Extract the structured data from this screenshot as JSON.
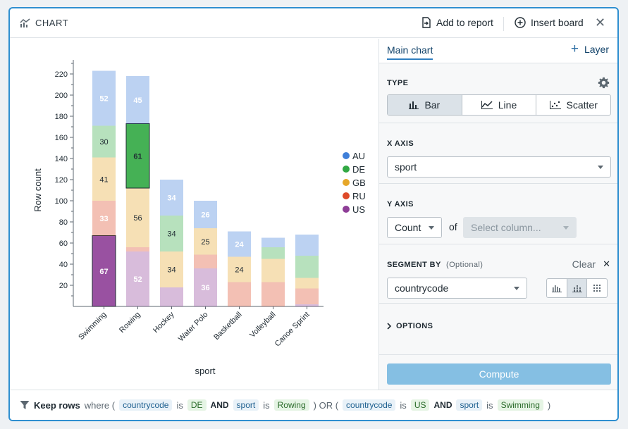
{
  "header": {
    "title": "CHART",
    "add_to_report": "Add to report",
    "insert_board": "Insert board"
  },
  "panel": {
    "tab_main": "Main chart",
    "tab_layer": "Layer",
    "type_label": "TYPE",
    "type_options": [
      "Bar",
      "Line",
      "Scatter"
    ],
    "type_selected": "Bar",
    "x_axis_label": "X AXIS",
    "x_axis_value": "sport",
    "y_axis_label": "Y AXIS",
    "y_agg": "Count",
    "y_of": "of",
    "y_column_placeholder": "Select column...",
    "segment_label": "SEGMENT BY",
    "segment_optional": "(Optional)",
    "segment_clear": "Clear",
    "segment_value": "countrycode",
    "options_label": "OPTIONS",
    "compute_label": "Compute"
  },
  "footer": {
    "keep_rows": "Keep rows",
    "where": "where (",
    "col1": "countrycode",
    "is1": "is",
    "val1": "DE",
    "and1": "AND",
    "col2": "sport",
    "is2": "is",
    "val2": "Rowing",
    "or": ") OR (",
    "col3": "countrycode",
    "is3": "is",
    "val3": "US",
    "and2": "AND",
    "col4": "sport",
    "is4": "is",
    "val4": "Swimming",
    "close": ")"
  },
  "colors": {
    "AU": "#3f7fd9",
    "DE": "#31a843",
    "GB": "#e6a72a",
    "RU": "#de4a29",
    "US": "#8e3e97",
    "accent": "#2f8fd0"
  },
  "chart_data": {
    "type": "bar",
    "stacked": true,
    "xlabel": "sport",
    "ylabel": "Row count",
    "ylim": [
      0,
      240
    ],
    "yticks": [
      20,
      40,
      60,
      80,
      100,
      120,
      140,
      160,
      180,
      200,
      220
    ],
    "categories": [
      "Swimming",
      "Rowing",
      "Hockey",
      "Water Polo",
      "Basketball",
      "Volleyball",
      "Canoe Sprint"
    ],
    "legend_position": "right",
    "series": [
      {
        "name": "US",
        "values": [
          67,
          0,
          0,
          0,
          0,
          0,
          0
        ],
        "labels": [
          "67",
          "",
          "",
          "",
          "",
          "",
          ""
        ]
      },
      {
        "name": "US",
        "values": [
          0,
          52,
          18,
          36,
          0,
          0,
          2
        ],
        "labels": [
          "",
          "52",
          "",
          "36",
          "",
          "",
          ""
        ]
      },
      {
        "name": "RU",
        "values": [
          33,
          4,
          0,
          13,
          23,
          23,
          15
        ],
        "labels": [
          "33",
          "",
          "",
          "",
          "",
          "",
          ""
        ]
      },
      {
        "name": "GB",
        "values": [
          41,
          56,
          34,
          25,
          24,
          22,
          10
        ],
        "labels": [
          "41",
          "56",
          "34",
          "25",
          "24",
          "",
          ""
        ]
      },
      {
        "name": "DE",
        "values": [
          30,
          61,
          34,
          0,
          0,
          11,
          21
        ],
        "labels": [
          "30",
          "61",
          "34",
          "",
          "",
          "",
          ""
        ]
      },
      {
        "name": "AU",
        "values": [
          52,
          45,
          34,
          26,
          24,
          9,
          20
        ],
        "labels": [
          "52",
          "45",
          "34",
          "26",
          "24",
          "",
          ""
        ]
      }
    ],
    "highlighted": [
      {
        "category": "Swimming",
        "series": "US"
      },
      {
        "category": "Rowing",
        "series": "DE"
      }
    ]
  }
}
